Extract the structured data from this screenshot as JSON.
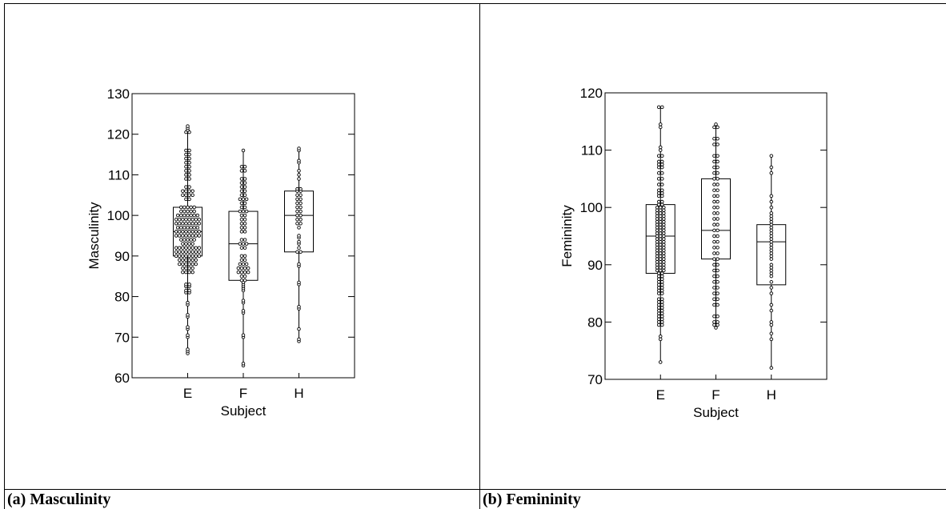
{
  "captions": {
    "a": "(a) Masculinity",
    "b": "(b) Femininity"
  },
  "colors": {
    "ink": "#000000",
    "background": "#ffffff"
  },
  "chart_data": [
    {
      "type": "box-dot",
      "xlabel": "Subject",
      "ylabel": "Masculinity",
      "ylim": [
        60,
        130
      ],
      "yticks": [
        60,
        70,
        80,
        90,
        100,
        110,
        120,
        130
      ],
      "categories": [
        "E",
        "F",
        "H"
      ],
      "grid": false,
      "boxes": [
        {
          "category": "E",
          "whisker_low": 66,
          "q1": 90,
          "median": 96,
          "q3": 102,
          "whisker_high": 122
        },
        {
          "category": "F",
          "whisker_low": 63,
          "q1": 84,
          "median": 93,
          "q3": 101,
          "whisker_high": 116
        },
        {
          "category": "H",
          "whisker_low": 69,
          "q1": 91,
          "median": 100,
          "q3": 106,
          "whisker_high": 116
        }
      ],
      "points": {
        "E": [
          66,
          66.5,
          67,
          70,
          70.5,
          72,
          72.5,
          75,
          75.5,
          78,
          78.5,
          81,
          81,
          81.5,
          81.5,
          82.5,
          82.5,
          83,
          83,
          86,
          86,
          86,
          86,
          87,
          87,
          87,
          87,
          88,
          88,
          88,
          88,
          88,
          88,
          89,
          89,
          89,
          89,
          89,
          89,
          90,
          90,
          90,
          90,
          90,
          90,
          90,
          90,
          91,
          91,
          91,
          91,
          91,
          91,
          91,
          91,
          92,
          92,
          92,
          92,
          92,
          92,
          92,
          92,
          93,
          93,
          93,
          93,
          94,
          94,
          94,
          94,
          94,
          95,
          95,
          95,
          95,
          95,
          95,
          95,
          95,
          96,
          96,
          96,
          96,
          96,
          96,
          96,
          96,
          97,
          97,
          97,
          97,
          97,
          97,
          97,
          98,
          98,
          98,
          98,
          98,
          98,
          98,
          98,
          99,
          99,
          99,
          99,
          99,
          99,
          99,
          99,
          100,
          100,
          100,
          100,
          100,
          100,
          100,
          101,
          101,
          101,
          101,
          101,
          102,
          102,
          102,
          102,
          102,
          104,
          104,
          105,
          105,
          105,
          105,
          106,
          106,
          106,
          106,
          107,
          107,
          109,
          109,
          110,
          110,
          111,
          111,
          112,
          112,
          113,
          113,
          114,
          114,
          115,
          115,
          116,
          116,
          120.5,
          120.5,
          121,
          121.5,
          122
        ],
        "F": [
          63,
          63.5,
          70,
          70.5,
          76,
          76.5,
          78.5,
          79,
          81.5,
          82,
          82.5,
          83,
          83.5,
          84,
          84,
          85,
          85,
          86,
          86,
          86,
          86,
          87,
          87,
          87,
          87,
          88,
          88,
          88,
          89,
          89,
          90,
          90,
          92,
          92,
          93,
          93,
          93,
          94,
          94,
          96,
          96,
          97,
          97,
          98,
          98,
          99,
          99,
          100,
          100,
          101,
          101,
          101,
          102,
          102,
          103,
          103,
          104,
          104,
          104,
          105,
          105,
          106,
          106,
          107,
          107,
          108,
          108,
          109,
          109,
          111,
          111,
          112,
          112,
          116
        ],
        "H": [
          69,
          69.5,
          72,
          77,
          77.5,
          83,
          83.5,
          87.5,
          88,
          91,
          91,
          92,
          93,
          93.5,
          94.5,
          95,
          97,
          98,
          98,
          99,
          99,
          100,
          100,
          101,
          101,
          102,
          102,
          103,
          103,
          104,
          104,
          105,
          105,
          106,
          106,
          106.5,
          106.5,
          109,
          110,
          111,
          113,
          113.5,
          116,
          116.5
        ]
      }
    },
    {
      "type": "box-dot",
      "xlabel": "Subject",
      "ylabel": "Femininity",
      "ylim": [
        70,
        120
      ],
      "yticks": [
        70,
        80,
        90,
        100,
        110,
        120
      ],
      "categories": [
        "E",
        "F",
        "H"
      ],
      "grid": false,
      "boxes": [
        {
          "category": "E",
          "whisker_low": 73,
          "q1": 88.5,
          "median": 95,
          "q3": 100.5,
          "whisker_high": 117.5
        },
        {
          "category": "F",
          "whisker_low": 79,
          "q1": 91,
          "median": 96,
          "q3": 105,
          "whisker_high": 114.5
        },
        {
          "category": "H",
          "whisker_low": 72,
          "q1": 86.5,
          "median": 94,
          "q3": 97,
          "whisker_high": 109
        }
      ],
      "points": {
        "E": [
          73,
          77,
          77.5,
          79.5,
          79.5,
          80,
          80,
          80.5,
          80.5,
          81,
          81,
          81.5,
          81.5,
          82,
          82,
          82.5,
          82.5,
          83,
          83,
          83.5,
          83.5,
          84,
          84,
          85,
          85,
          85.5,
          85.5,
          86,
          86,
          86.5,
          86.5,
          87,
          87,
          87.5,
          87.5,
          88,
          88,
          88.5,
          88.5,
          89,
          89,
          89,
          89.5,
          89.5,
          89.5,
          90,
          90,
          90,
          90.5,
          90.5,
          90.5,
          91,
          91,
          91,
          91.5,
          91.5,
          91.5,
          92,
          92,
          92,
          92.5,
          92.5,
          92.5,
          93,
          93,
          93,
          93.5,
          93.5,
          93.5,
          94,
          94,
          94,
          94.5,
          94.5,
          94.5,
          95,
          95,
          95,
          95.5,
          95.5,
          95.5,
          96,
          96,
          96,
          96.5,
          96.5,
          96.5,
          97,
          97,
          97,
          97.5,
          97.5,
          97.5,
          98,
          98,
          98,
          98.5,
          98.5,
          98.5,
          99,
          99,
          99,
          99.5,
          99.5,
          99.5,
          100,
          100,
          100,
          100.5,
          100.5,
          101,
          101,
          102,
          102,
          102.5,
          102.5,
          103,
          103,
          104,
          104,
          105,
          105,
          106,
          106,
          107,
          107,
          107.5,
          107.5,
          108,
          108,
          109,
          109,
          110,
          110.5,
          114,
          114.5,
          117.5,
          117.5
        ],
        "F": [
          79,
          79.5,
          79.5,
          80,
          80,
          81,
          81,
          83,
          83,
          84,
          84,
          85,
          85,
          86,
          86,
          87,
          87,
          88,
          88,
          89,
          89,
          90,
          90,
          91,
          91,
          92,
          92,
          93,
          93,
          94,
          94,
          95,
          95,
          96,
          96,
          97,
          97,
          98,
          98,
          99,
          99,
          100,
          100,
          101,
          101,
          102,
          102,
          103,
          103,
          104,
          104,
          105,
          105,
          106,
          106,
          107,
          107,
          108,
          108,
          109,
          109,
          111,
          111,
          112,
          112,
          114,
          114,
          114.5
        ],
        "H": [
          72,
          77,
          78,
          79.5,
          80,
          82,
          83,
          85,
          86,
          87,
          88,
          88.5,
          89,
          89.5,
          90,
          91,
          91.5,
          92,
          92.5,
          93,
          93.5,
          94,
          94.5,
          95,
          95.5,
          96,
          96.5,
          97,
          97.5,
          98,
          98.5,
          99,
          100,
          101,
          102,
          106,
          107,
          109
        ]
      }
    }
  ]
}
